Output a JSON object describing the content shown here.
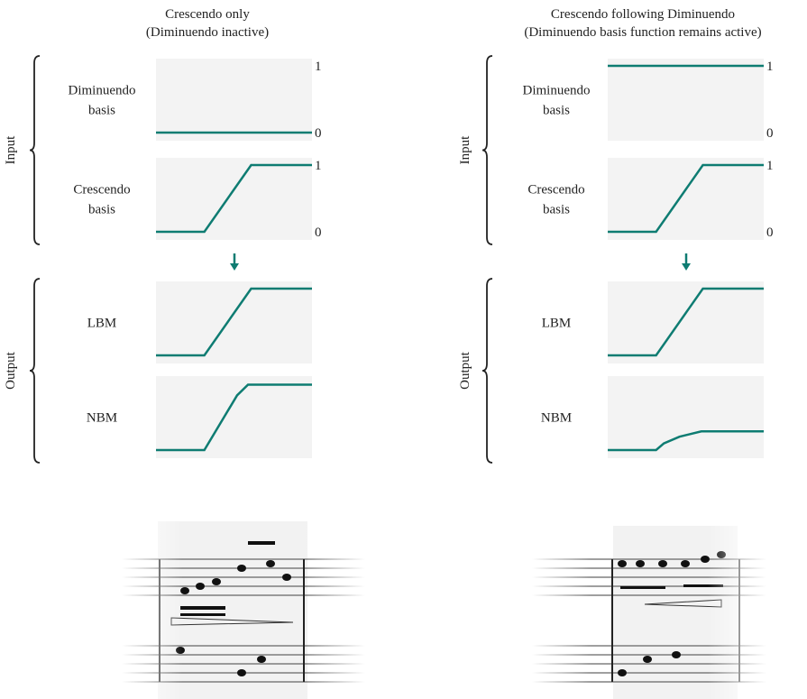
{
  "columns": [
    {
      "title": [
        "Crescendo only",
        "(Diminuendo inactive)"
      ],
      "groups": [
        {
          "label": "Input",
          "rows": [
            {
              "label": [
                "Diminuendo",
                "basis"
              ],
              "axis_labels": [
                "1",
                "0"
              ],
              "curve": {
                "x": [
                  0,
                  1
                ],
                "y": [
                  0,
                  0
                ]
              }
            },
            {
              "label": [
                "Crescendo",
                "basis"
              ],
              "axis_labels": [
                "1",
                "0"
              ],
              "curve": {
                "x": [
                  0,
                  0.31,
                  0.61,
                  1
                ],
                "y": [
                  0,
                  0,
                  1,
                  1
                ]
              }
            }
          ]
        },
        {
          "label": "Output",
          "rows": [
            {
              "label": [
                "LBM"
              ],
              "curve": {
                "x": [
                  0,
                  0.31,
                  0.61,
                  1
                ],
                "y": [
                  0,
                  0,
                  1,
                  1
                ]
              }
            },
            {
              "label": [
                "NBM"
              ],
              "curve": {
                "x": [
                  0,
                  0.31,
                  0.52,
                  0.59,
                  1
                ],
                "y": [
                  0,
                  0,
                  0.82,
                  0.98,
                  0.98
                ]
              }
            }
          ]
        }
      ]
    },
    {
      "title": [
        "Crescendo following Diminuendo",
        "(Diminuendo basis function remains active)"
      ],
      "groups": [
        {
          "label": "Input",
          "rows": [
            {
              "label": [
                "Diminuendo",
                "basis"
              ],
              "axis_labels": [
                "1",
                "0"
              ],
              "curve": {
                "x": [
                  0,
                  1
                ],
                "y": [
                  1,
                  1
                ]
              }
            },
            {
              "label": [
                "Crescendo",
                "basis"
              ],
              "axis_labels": [
                "1",
                "0"
              ],
              "curve": {
                "x": [
                  0,
                  0.31,
                  0.61,
                  1
                ],
                "y": [
                  0,
                  0,
                  1,
                  1
                ]
              }
            }
          ]
        },
        {
          "label": "Output",
          "rows": [
            {
              "label": [
                "LBM"
              ],
              "curve": {
                "x": [
                  0,
                  0.31,
                  0.61,
                  1
                ],
                "y": [
                  0,
                  0,
                  1,
                  1
                ]
              }
            },
            {
              "label": [
                "NBM"
              ],
              "curve": {
                "x": [
                  0,
                  0.31,
                  0.36,
                  0.46,
                  0.6,
                  1
                ],
                "y": [
                  0,
                  0,
                  0.1,
                  0.2,
                  0.28,
                  0.28
                ]
              }
            }
          ]
        }
      ]
    }
  ]
}
